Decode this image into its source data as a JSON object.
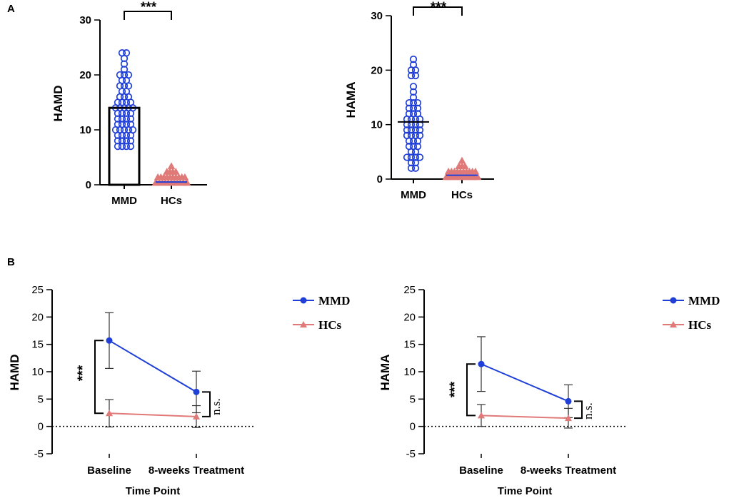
{
  "panels": {
    "a": "A",
    "b": "B"
  },
  "colors": {
    "mmd": "#1f3fd6",
    "hcs": "#e07a78",
    "axis": "#000000"
  },
  "chart_data": [
    {
      "type": "scatter",
      "id": "a-hamd",
      "ylabel": "HAMD",
      "categories": [
        "MMD",
        "HCs"
      ],
      "ylim": [
        0,
        30
      ],
      "yticks": [
        0,
        10,
        20,
        30
      ],
      "bar_mean": 14,
      "significance": "***",
      "series": [
        {
          "name": "MMD",
          "marker": "circle",
          "mean": 14,
          "values": [
            7,
            7,
            7,
            7,
            8,
            8,
            8,
            8,
            9,
            9,
            9,
            9,
            10,
            10,
            10,
            10,
            10,
            11,
            11,
            11,
            11,
            12,
            12,
            12,
            12,
            13,
            13,
            13,
            13,
            14,
            14,
            14,
            14,
            14,
            15,
            15,
            15,
            15,
            16,
            16,
            16,
            17,
            17,
            18,
            18,
            18,
            19,
            19,
            20,
            20,
            20,
            21,
            22,
            23,
            24,
            24
          ]
        },
        {
          "name": "HCs",
          "marker": "triangle",
          "mean": 0.5,
          "values": [
            0,
            0,
            0,
            0,
            0,
            0,
            0,
            0,
            0,
            0,
            0,
            0,
            0,
            1,
            1,
            1,
            1,
            1,
            1,
            1,
            1,
            1,
            1,
            2,
            2,
            2,
            2,
            3
          ]
        }
      ]
    },
    {
      "type": "scatter",
      "id": "a-hama",
      "ylabel": "HAMA",
      "categories": [
        "MMD",
        "HCs"
      ],
      "ylim": [
        0,
        30
      ],
      "yticks": [
        0,
        10,
        20,
        30
      ],
      "significance": "***",
      "series": [
        {
          "name": "MMD",
          "marker": "circle",
          "mean": 10.5,
          "values": [
            2,
            2,
            3,
            3,
            4,
            4,
            4,
            4,
            5,
            5,
            6,
            6,
            6,
            7,
            7,
            7,
            8,
            8,
            8,
            8,
            9,
            9,
            9,
            9,
            10,
            10,
            10,
            10,
            11,
            11,
            11,
            11,
            12,
            12,
            12,
            13,
            13,
            13,
            14,
            14,
            14,
            15,
            16,
            17,
            19,
            19,
            20,
            20,
            21,
            22
          ]
        },
        {
          "name": "HCs",
          "marker": "triangle",
          "mean": 0.7,
          "values": [
            0,
            0,
            0,
            0,
            0,
            0,
            0,
            0,
            0,
            0,
            0,
            0,
            1,
            1,
            1,
            1,
            1,
            1,
            1,
            1,
            1,
            1,
            2,
            2,
            2,
            3
          ]
        }
      ]
    },
    {
      "type": "line",
      "id": "b-hamd",
      "ylabel": "HAMD",
      "xlabel": "Time Point",
      "categories": [
        "Baseline",
        "8-weeks Treatment"
      ],
      "ylim": [
        -5,
        25
      ],
      "yticks": [
        -5,
        0,
        5,
        10,
        15,
        20,
        25
      ],
      "legend": "right",
      "series": [
        {
          "name": "MMD",
          "marker": "circle",
          "values": [
            15.7,
            6.3
          ],
          "err": [
            5.1,
            3.8
          ]
        },
        {
          "name": "HCs",
          "marker": "triangle",
          "values": [
            2.4,
            1.8
          ],
          "err": [
            2.5,
            2.0
          ]
        }
      ],
      "annotations": [
        {
          "text": "***",
          "categoryIndex": 0,
          "from": 2.4,
          "to": 15.7
        },
        {
          "text": "n.s.",
          "categoryIndex": 1,
          "from": 1.8,
          "to": 6.3
        }
      ]
    },
    {
      "type": "line",
      "id": "b-hama",
      "ylabel": "HAMA",
      "xlabel": "Time Point",
      "categories": [
        "Baseline",
        "8-weeks Treatment"
      ],
      "ylim": [
        -5,
        25
      ],
      "yticks": [
        -5,
        0,
        5,
        10,
        15,
        20,
        25
      ],
      "legend": "right",
      "series": [
        {
          "name": "MMD",
          "marker": "circle",
          "values": [
            11.4,
            4.6
          ],
          "err": [
            5.0,
            3.0
          ]
        },
        {
          "name": "HCs",
          "marker": "triangle",
          "values": [
            2.0,
            1.5
          ],
          "err": [
            2.0,
            1.8
          ]
        }
      ],
      "annotations": [
        {
          "text": "***",
          "categoryIndex": 0,
          "from": 2.0,
          "to": 11.4
        },
        {
          "text": "n.s.",
          "categoryIndex": 1,
          "from": 1.5,
          "to": 4.6
        }
      ]
    }
  ]
}
